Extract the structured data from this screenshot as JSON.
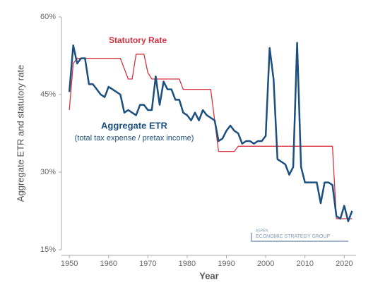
{
  "chart_data": {
    "type": "line",
    "y_label": "Aggregate ETR and statutory rate",
    "x_label": "Year",
    "annotations": [
      "Statutory Rate",
      "Aggregate ETR",
      "(total tax expense / pretax income)"
    ],
    "logo": {
      "line1": "ASPEN",
      "line2": "ECONOMIC STRATEGY GROUP"
    },
    "xlim": [
      1948,
      2023
    ],
    "xticks": [
      1950,
      1960,
      1970,
      1980,
      1990,
      2000,
      2010,
      2020
    ],
    "ylim": [
      15,
      60
    ],
    "yticks": [
      {
        "value": 15,
        "label": "15%"
      },
      {
        "value": 30,
        "label": "30%"
      },
      {
        "value": 45,
        "label": "45%"
      },
      {
        "value": 60,
        "label": "60%"
      }
    ],
    "x": [
      1950,
      1951,
      1952,
      1953,
      1954,
      1955,
      1956,
      1957,
      1958,
      1959,
      1960,
      1961,
      1962,
      1963,
      1964,
      1965,
      1966,
      1967,
      1968,
      1969,
      1970,
      1971,
      1972,
      1973,
      1974,
      1975,
      1976,
      1977,
      1978,
      1979,
      1980,
      1981,
      1982,
      1983,
      1984,
      1985,
      1986,
      1987,
      1988,
      1989,
      1990,
      1991,
      1992,
      1993,
      1994,
      1995,
      1996,
      1997,
      1998,
      1999,
      2000,
      2001,
      2002,
      2003,
      2004,
      2005,
      2006,
      2007,
      2008,
      2009,
      2010,
      2011,
      2012,
      2013,
      2014,
      2015,
      2016,
      2017,
      2018,
      2019,
      2020,
      2021,
      2022
    ],
    "series": [
      {
        "name": "Statutory Rate",
        "color": "#d6323f",
        "values": [
          42,
          51,
          52,
          52,
          52,
          52,
          52,
          52,
          52,
          52,
          52,
          52,
          52,
          52,
          50,
          48,
          48,
          52.8,
          52.8,
          52.8,
          49.2,
          48,
          48,
          48,
          48,
          48,
          48,
          48,
          48,
          46,
          46,
          46,
          46,
          46,
          46,
          46,
          46,
          40,
          34,
          34,
          34,
          34,
          34,
          35,
          35,
          35,
          35,
          35,
          35,
          35,
          35,
          35,
          35,
          35,
          35,
          35,
          35,
          35,
          35,
          35,
          35,
          35,
          35,
          35,
          35,
          35,
          35,
          35,
          21,
          21,
          21,
          21,
          21
        ]
      },
      {
        "name": "Aggregate ETR",
        "color": "#1b4f7f",
        "values": [
          45.5,
          54.5,
          51,
          52,
          52,
          47,
          47,
          46,
          45,
          44.5,
          46.5,
          46,
          45.5,
          45,
          41.5,
          42,
          41.5,
          41,
          43,
          43,
          42,
          42,
          48.5,
          43,
          47.5,
          46,
          46,
          44,
          44,
          41.5,
          41,
          40,
          41.5,
          40,
          42,
          41,
          40.5,
          40,
          36,
          36.5,
          38,
          39,
          38,
          37.5,
          35.5,
          36,
          36,
          35.5,
          36,
          36,
          37,
          54,
          48,
          32.5,
          32,
          31.5,
          29.5,
          31,
          55,
          31,
          28,
          28,
          28,
          28,
          24,
          28,
          28,
          27.5,
          21.5,
          21,
          23.5,
          20.5,
          22.5
        ]
      }
    ]
  }
}
